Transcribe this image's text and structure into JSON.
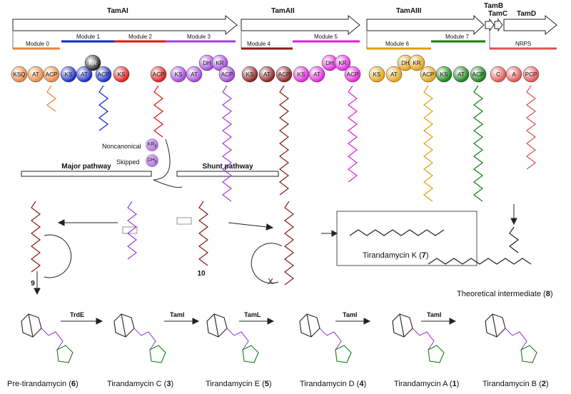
{
  "genes": {
    "tamAI": "TamAI",
    "tamAII": "TamAII",
    "tamAIII": "TamAIII",
    "tamB": "TamB",
    "tamC": "TamC",
    "tamD": "TamD"
  },
  "modules": {
    "m0": "Module 0",
    "m1": "Module 1",
    "m2": "Module 2",
    "m3": "Module 3",
    "m4": "Module 4",
    "m5": "Module 5",
    "m6": "Module 6",
    "m7": "Module 7",
    "nrps": "NRPS"
  },
  "domains": [
    "KSQ",
    "AT",
    "ACP",
    "KS",
    "AT",
    "ACP",
    "KS",
    "KR",
    "ACP",
    "KS",
    "AT",
    "DH",
    "KR",
    "ACP",
    "KS",
    "AT",
    "ACP",
    "KS",
    "AT",
    "DH",
    "KR",
    "ACP",
    "KS",
    "AT",
    "DH",
    "KR",
    "ACP",
    "KS",
    "AT",
    "ACP",
    "C",
    "A",
    "PCP"
  ],
  "labels": {
    "noncanonical": "Noncanonical",
    "skipped": "Skipped",
    "kr3": "KR",
    "dh3": "DH",
    "major_pathway": "Major pathway",
    "shunt_pathway": "Shunt pathway",
    "compound_9": "9",
    "compound_10": "10"
  },
  "compounds": {
    "tirandamycin_k": "Tirandamycin K (",
    "tirandamycin_k_num": "7",
    "theoretical": "Theoretical intermediate (",
    "theoretical_num": "8",
    "pre_tirandamycin": "Pre-tirandamycin (",
    "pre_tirandamycin_num": "6",
    "tir_c": "Tirandamycin C (",
    "tir_c_num": "3",
    "tir_e": "Tirandamycin E (",
    "tir_e_num": "5",
    "tir_d": "Tirandamycin D (",
    "tir_d_num": "4",
    "tir_a": "Tirandamycin A (",
    "tir_a_num": "1",
    "tir_b": "Tirandamycin B (",
    "tir_b_num": "2"
  },
  "enzymes": {
    "trdE": "TrdE",
    "taml1": "TamI",
    "tamL": "TamL",
    "taml2": "TamI",
    "taml3": "TamI"
  },
  "colors": {
    "module0": "#e9833a",
    "module1": "#1428c8",
    "module2": "#e01414",
    "module3": "#a040d8",
    "module4": "#8b1a1a",
    "module5": "#e020d8",
    "module6": "#e0a010",
    "module7": "#108010",
    "nrps": "#e05050"
  }
}
